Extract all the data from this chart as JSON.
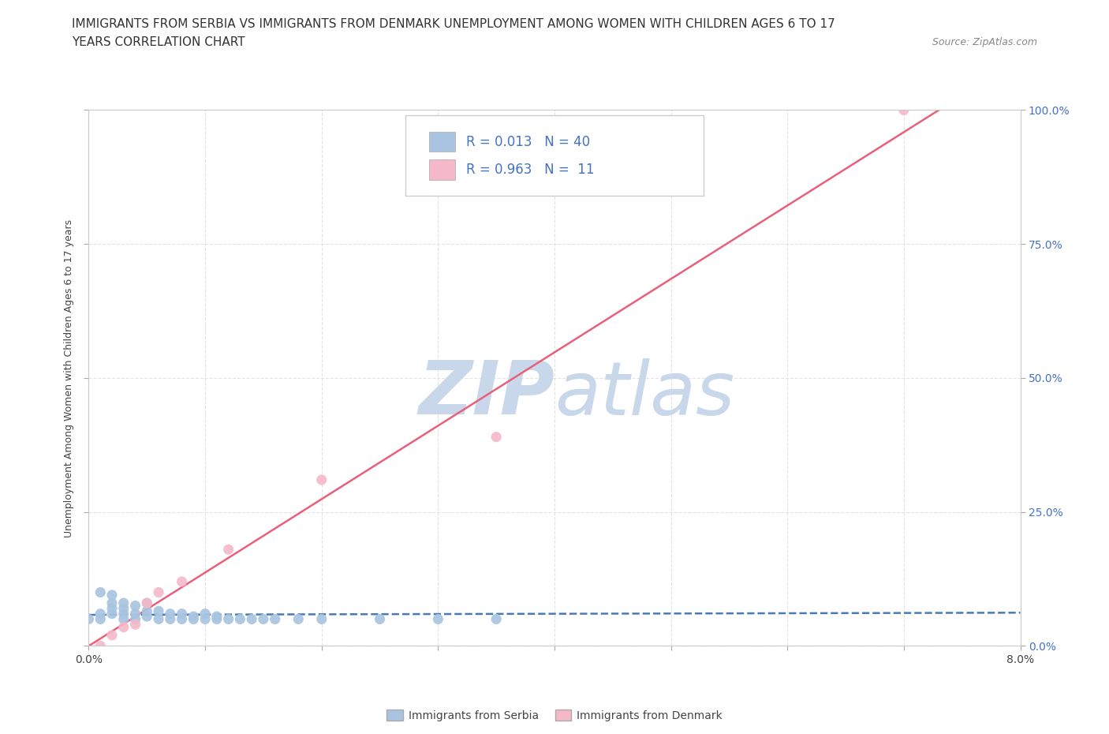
{
  "title_line1": "IMMIGRANTS FROM SERBIA VS IMMIGRANTS FROM DENMARK UNEMPLOYMENT AMONG WOMEN WITH CHILDREN AGES 6 TO 17",
  "title_line2": "YEARS CORRELATION CHART",
  "source_text": "Source: ZipAtlas.com",
  "ylabel": "Unemployment Among Women with Children Ages 6 to 17 years",
  "xlim": [
    0.0,
    0.08
  ],
  "ylim": [
    0.0,
    1.0
  ],
  "xticks": [
    0.0,
    0.01,
    0.02,
    0.03,
    0.04,
    0.05,
    0.06,
    0.07,
    0.08
  ],
  "yticks": [
    0.0,
    0.25,
    0.5,
    0.75,
    1.0
  ],
  "ytick_labels": [
    "0.0%",
    "25.0%",
    "50.0%",
    "75.0%",
    "100.0%"
  ],
  "serbia_color": "#a8c4e0",
  "denmark_color": "#f4b8c8",
  "serbia_R": "0.013",
  "serbia_N": "40",
  "denmark_R": "0.963",
  "denmark_N": "11",
  "trend_serbia_color": "#4a7ab5",
  "trend_denmark_color": "#e8607a",
  "serbia_x": [
    0.0,
    0.001,
    0.001,
    0.001,
    0.002,
    0.002,
    0.002,
    0.002,
    0.003,
    0.003,
    0.003,
    0.003,
    0.004,
    0.004,
    0.004,
    0.005,
    0.005,
    0.005,
    0.006,
    0.006,
    0.007,
    0.007,
    0.008,
    0.008,
    0.009,
    0.009,
    0.01,
    0.01,
    0.011,
    0.011,
    0.012,
    0.013,
    0.014,
    0.015,
    0.016,
    0.018,
    0.02,
    0.025,
    0.03,
    0.035
  ],
  "serbia_y": [
    0.05,
    0.05,
    0.06,
    0.1,
    0.06,
    0.07,
    0.08,
    0.095,
    0.05,
    0.06,
    0.07,
    0.08,
    0.05,
    0.06,
    0.075,
    0.055,
    0.065,
    0.08,
    0.05,
    0.065,
    0.05,
    0.06,
    0.05,
    0.06,
    0.05,
    0.055,
    0.05,
    0.06,
    0.05,
    0.055,
    0.05,
    0.05,
    0.05,
    0.05,
    0.05,
    0.05,
    0.05,
    0.05,
    0.05,
    0.05
  ],
  "denmark_x": [
    0.001,
    0.002,
    0.003,
    0.004,
    0.005,
    0.006,
    0.008,
    0.012,
    0.02,
    0.035,
    0.07
  ],
  "denmark_y": [
    0.0,
    0.02,
    0.035,
    0.04,
    0.08,
    0.1,
    0.12,
    0.18,
    0.31,
    0.39,
    1.0
  ],
  "watermark_color": "#c8d8ea",
  "background_color": "#ffffff",
  "grid_color": "#dddddd",
  "label_color": "#4472c4",
  "right_tick_color": "#4472c4",
  "title_fontsize": 11,
  "axis_label_fontsize": 9,
  "tick_fontsize": 10,
  "legend_label_color": "#4472c4"
}
